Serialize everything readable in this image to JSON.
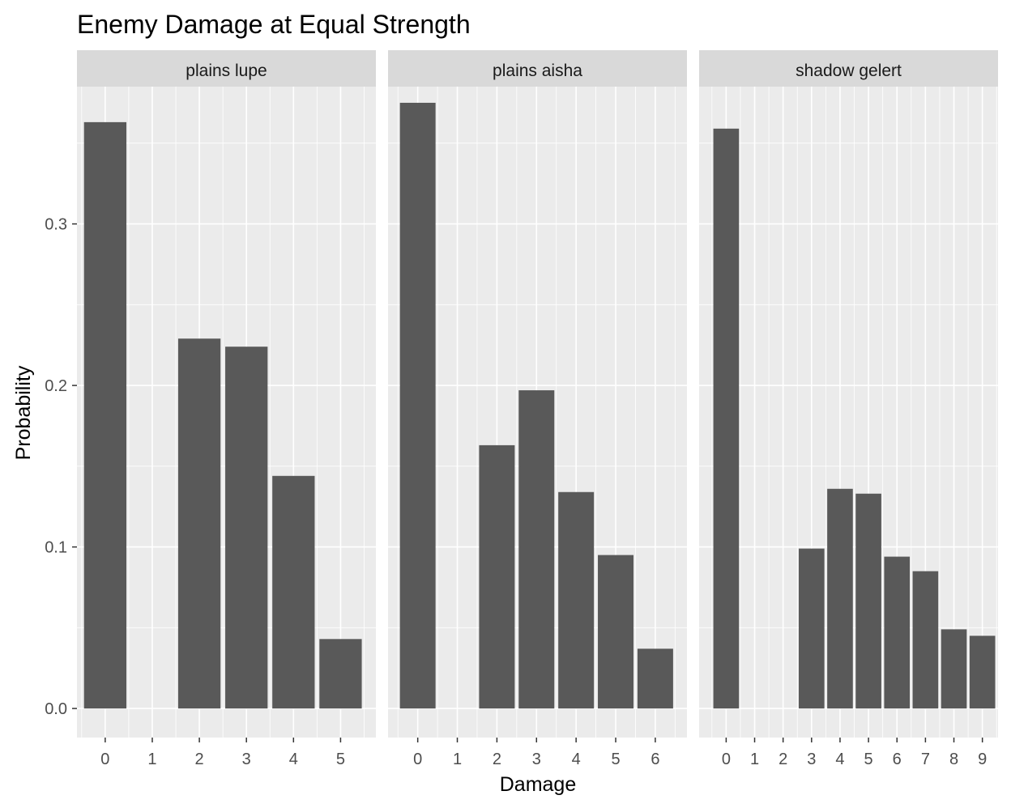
{
  "chart_data": {
    "type": "bar",
    "title": "Enemy Damage at Equal Strength",
    "xlabel": "Damage",
    "ylabel": "Probability",
    "ylim": [
      -0.018,
      0.385
    ],
    "yticks": [
      "0.0",
      "0.1",
      "0.2",
      "0.3"
    ],
    "y_tick_values": [
      0,
      0.1,
      0.2,
      0.3
    ],
    "grid": true,
    "bar_color": "#595959",
    "panel_bg": "#ebebeb",
    "strip_bg": "#d9d9d9",
    "facets": [
      {
        "name": "plains lupe",
        "x": [
          0,
          1,
          2,
          3,
          4,
          5
        ],
        "values": [
          0.363,
          0,
          0.229,
          0.224,
          0.144,
          0.043
        ],
        "xlim": [
          -0.6,
          5.75
        ]
      },
      {
        "name": "plains aisha",
        "x": [
          0,
          1,
          2,
          3,
          4,
          5,
          6
        ],
        "values": [
          0.375,
          0,
          0.163,
          0.197,
          0.134,
          0.095,
          0.037
        ],
        "xlim": [
          -0.75,
          6.8
        ]
      },
      {
        "name": "shadow gelert",
        "x": [
          0,
          1,
          2,
          3,
          4,
          5,
          6,
          7,
          8,
          9
        ],
        "values": [
          0.359,
          0,
          0,
          0.099,
          0.136,
          0.133,
          0.094,
          0.085,
          0.049,
          0.045
        ],
        "xlim": [
          -0.95,
          9.55
        ]
      }
    ]
  }
}
